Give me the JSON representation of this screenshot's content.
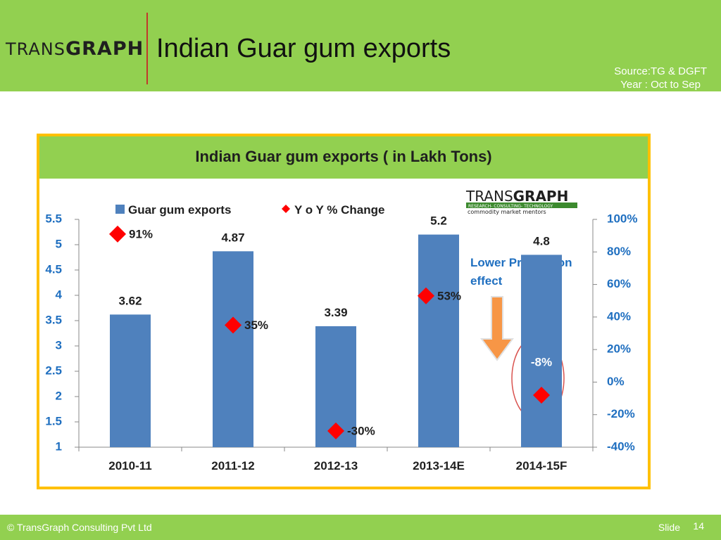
{
  "header": {
    "logo_part1": "TRANS",
    "logo_part2": "GRAPH",
    "title": "Indian Guar gum exports",
    "source_line1": "Source:TG & DGFT",
    "source_line2": "Year : Oct to Sep"
  },
  "footer": {
    "copyright": "© TransGraph Consulting Pvt Ltd",
    "slide_label": "Slide",
    "slide_number": "14"
  },
  "chart_data": {
    "type": "bar",
    "title": "Indian Guar gum exports ( in Lakh Tons)",
    "categories": [
      "2010-11",
      "2011-12",
      "2012-13",
      "2013-14E",
      "2014-15F"
    ],
    "series": [
      {
        "name": "Guar gum exports",
        "values": [
          3.62,
          4.87,
          3.39,
          5.2,
          4.8
        ],
        "axis": "left",
        "color": "#4f81bd"
      },
      {
        "name": "Y o Y % Change",
        "values": [
          91,
          35,
          -30,
          53,
          -8
        ],
        "axis": "right",
        "type": "scatter",
        "marker": "diamond",
        "color": "#ff0000"
      }
    ],
    "data_labels": {
      "bars": [
        "3.62",
        "4.87",
        "3.39",
        "5.2",
        "4.8"
      ],
      "points": [
        "91%",
        "35%",
        "-30%",
        "53%",
        "-8%"
      ]
    },
    "ylim": [
      1,
      5.5
    ],
    "y_ticks": [
      "1",
      "1.5",
      "2",
      "2.5",
      "3",
      "3.5",
      "4",
      "4.5",
      "5",
      "5.5"
    ],
    "y2lim": [
      -40,
      100
    ],
    "y2_ticks": [
      "-40%",
      "-20%",
      "0%",
      "20%",
      "40%",
      "60%",
      "80%",
      "100%"
    ],
    "legend_position": "top",
    "grid": false,
    "chart_logo_part1": "TRANS",
    "chart_logo_part2": "GRAPH",
    "chart_logo_line1": "RESEARCH- CONSULTING- TECHNOLOGY",
    "chart_logo_line2": "commodity market mentors",
    "annotation_line1": "Lower Production",
    "annotation_line2": "effect",
    "colors": {
      "title_band": "#92d050",
      "border": "#ffc000",
      "axis_label": "#1f6fc0",
      "arrow": "#f79646"
    }
  }
}
